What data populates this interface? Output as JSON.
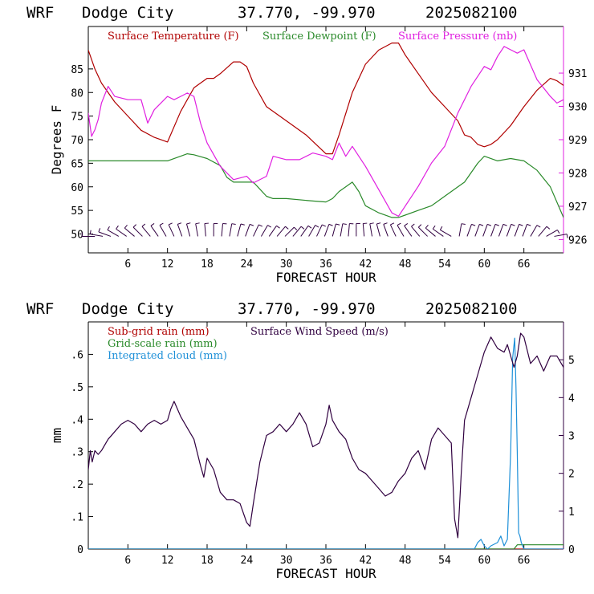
{
  "colors": {
    "temperature": "#b00000",
    "dewpoint": "#2a8a2a",
    "pressure": "#e020e0",
    "subgrid_rain": "#b00000",
    "gridscale_rain": "#2a8a2a",
    "cloud": "#1e90d8",
    "wind": "#300040",
    "axis": "#000000",
    "right_axis_top": "#e020e0",
    "right_axis_bottom": "#300040"
  },
  "chart_data": [
    {
      "type": "line",
      "header": {
        "model": "WRF",
        "location": "Dodge City",
        "coords": "37.770, -99.970",
        "run": "2025082100"
      },
      "xlabel": "FORECAST HOUR",
      "ylabel": "Degrees F",
      "xlim": [
        0,
        72
      ],
      "ylim": [
        46,
        94
      ],
      "y2lim": [
        925.6,
        932.4
      ],
      "x_ticks": [
        "6",
        "12",
        "18",
        "24",
        "30",
        "36",
        "42",
        "48",
        "54",
        "60",
        "66"
      ],
      "x_tick_values": [
        6,
        12,
        18,
        24,
        30,
        36,
        42,
        48,
        54,
        60,
        66
      ],
      "y_ticks": [
        "50",
        "55",
        "60",
        "65",
        "70",
        "75",
        "80",
        "85"
      ],
      "y_tick_values": [
        50,
        55,
        60,
        65,
        70,
        75,
        80,
        85
      ],
      "y2_ticks": [
        "926",
        "927",
        "928",
        "929",
        "930",
        "931"
      ],
      "y2_tick_values": [
        926,
        927,
        928,
        929,
        930,
        931
      ],
      "legend": [
        "Surface Temperature (F)",
        "Surface Dewpoint (F)",
        "Surface Pressure (mb)"
      ],
      "series": [
        {
          "name": "Surface Temperature (F)",
          "axis": "left",
          "x": [
            0,
            1,
            2,
            4,
            6,
            8,
            10,
            12,
            14,
            16,
            18,
            19,
            20,
            22,
            23,
            24,
            25,
            27,
            30,
            33,
            36,
            37,
            38,
            40,
            42,
            44,
            46,
            47,
            48,
            50,
            52,
            54,
            56,
            57,
            58,
            59,
            60,
            61,
            62,
            64,
            66,
            68,
            70,
            71,
            72
          ],
          "y": [
            89,
            85,
            82,
            78,
            75,
            72,
            70.5,
            69.5,
            76,
            81,
            83,
            83,
            84,
            86.5,
            86.5,
            85.5,
            82,
            77,
            74,
            71,
            67,
            67,
            71,
            80,
            86,
            89,
            90.5,
            90.5,
            88,
            84,
            80,
            77,
            74,
            71,
            70.5,
            69,
            68.5,
            69,
            70,
            73,
            77,
            80.5,
            83,
            82.5,
            81.5
          ]
        },
        {
          "name": "Surface Dewpoint (F)",
          "axis": "left",
          "x": [
            0,
            2,
            4,
            8,
            12,
            14,
            15,
            16,
            18,
            20,
            21,
            22,
            24,
            25,
            26,
            27,
            28,
            30,
            34,
            36,
            37,
            38,
            39,
            40,
            41,
            42,
            44,
            46,
            47,
            48,
            50,
            52,
            54,
            56,
            57,
            58,
            59,
            60,
            62,
            64,
            66,
            68,
            70,
            72
          ],
          "y": [
            65.5,
            65.5,
            65.5,
            65.5,
            65.5,
            66.5,
            67,
            66.8,
            66,
            64.5,
            62,
            61,
            61,
            61,
            59.5,
            58,
            57.5,
            57.5,
            57,
            56.8,
            57.5,
            59,
            60,
            61,
            59,
            56,
            54.5,
            53.5,
            53.5,
            54,
            55,
            56,
            58,
            60,
            61,
            63,
            65,
            66.5,
            65.5,
            66,
            65.5,
            63.5,
            60,
            53.5
          ]
        },
        {
          "name": "Surface Pressure (mb)",
          "axis": "right",
          "x": [
            0,
            0.5,
            1,
            1.5,
            2,
            3,
            4,
            6,
            8,
            9,
            10,
            11,
            12,
            13,
            14,
            15,
            16,
            17,
            18,
            20,
            22,
            24,
            25,
            27,
            28,
            30,
            32,
            34,
            36,
            37,
            38,
            39,
            40,
            42,
            44,
            46,
            47,
            48,
            50,
            52,
            54,
            56,
            58,
            60,
            61,
            62,
            63,
            64,
            65,
            66,
            68,
            70,
            71,
            72
          ],
          "y": [
            929.8,
            929.1,
            929.3,
            929.6,
            930.1,
            930.6,
            930.3,
            930.2,
            930.2,
            929.5,
            929.9,
            930.1,
            930.3,
            930.2,
            930.3,
            930.4,
            930.3,
            929.5,
            928.9,
            928.2,
            927.8,
            927.9,
            927.7,
            927.9,
            928.5,
            928.4,
            928.4,
            928.6,
            928.5,
            928.4,
            928.9,
            928.5,
            928.8,
            928.2,
            927.5,
            926.8,
            926.7,
            927.0,
            927.6,
            928.3,
            928.8,
            929.8,
            930.6,
            931.2,
            931.1,
            931.5,
            931.8,
            931.7,
            931.6,
            931.7,
            930.8,
            930.3,
            930.1,
            930.2
          ]
        }
      ],
      "wind_barbs": {
        "x": [
          1,
          2.2,
          3.4,
          4.6,
          5.8,
          7,
          8.2,
          9.4,
          10.6,
          11.8,
          13,
          14.2,
          15.4,
          16.6,
          17.8,
          19,
          20.2,
          21.4,
          22.6,
          23.8,
          25,
          26.2,
          27.4,
          28.6,
          29.8,
          31,
          32.2,
          33.4,
          34.6,
          35.8,
          37,
          38.2,
          39.4,
          40.6,
          41.8,
          43,
          44.2,
          45.4,
          46.6,
          47.8,
          49,
          50.2,
          51.4,
          52.6,
          53.8,
          55,
          56.2,
          57.4,
          58.6,
          59.8,
          61,
          62.2,
          63.4,
          64.6,
          65.8,
          67,
          68.2,
          69.4,
          70.6
        ],
        "dir_deg": [
          -90,
          -80,
          -70,
          -60,
          -55,
          -50,
          -45,
          -40,
          -35,
          -30,
          -25,
          -20,
          -15,
          -10,
          -5,
          0,
          5,
          10,
          15,
          20,
          25,
          30,
          35,
          40,
          45,
          40,
          35,
          30,
          25,
          20,
          15,
          10,
          5,
          0,
          -5,
          -10,
          -15,
          -20,
          -25,
          -30,
          -35,
          -40,
          -45,
          -50,
          -55,
          -60,
          10,
          20,
          20,
          20,
          20,
          20,
          20,
          20,
          20,
          30,
          40,
          60,
          80
        ]
      }
    },
    {
      "type": "line",
      "header": {
        "model": "WRF",
        "location": "Dodge City",
        "coords": "37.770, -99.970",
        "run": "2025082100"
      },
      "xlabel": "FORECAST HOUR",
      "ylabel": "mm",
      "xlim": [
        0,
        72
      ],
      "ylim": [
        0,
        0.7
      ],
      "y2lim": [
        0,
        6
      ],
      "x_ticks": [
        "6",
        "12",
        "18",
        "24",
        "30",
        "36",
        "42",
        "48",
        "54",
        "60",
        "66"
      ],
      "x_tick_values": [
        6,
        12,
        18,
        24,
        30,
        36,
        42,
        48,
        54,
        60,
        66
      ],
      "y_ticks": [
        "0",
        ".1",
        ".2",
        ".3",
        ".4",
        ".5",
        ".6"
      ],
      "y_tick_values": [
        0,
        0.1,
        0.2,
        0.3,
        0.4,
        0.5,
        0.6
      ],
      "y2_ticks": [
        "0",
        "1",
        "2",
        "3",
        "4",
        "5"
      ],
      "y2_tick_values": [
        0,
        1,
        2,
        3,
        4,
        5
      ],
      "legend": [
        "Sub-grid rain (mm)",
        "Surface Wind Speed (m/s)",
        "Grid-scale rain (mm)",
        "Integrated cloud (mm)"
      ],
      "series": [
        {
          "name": "Sub-grid rain (mm)",
          "axis": "left",
          "x": [
            0,
            72
          ],
          "y": [
            0,
            0
          ]
        },
        {
          "name": "Grid-scale rain (mm)",
          "axis": "left",
          "x": [
            0,
            64.5,
            65,
            66,
            72
          ],
          "y": [
            0,
            0,
            0.013,
            0.013,
            0.013
          ]
        },
        {
          "name": "Integrated cloud (mm)",
          "axis": "left",
          "x": [
            0,
            58.5,
            59,
            59.5,
            60,
            60.5,
            61,
            62,
            62.5,
            63,
            63.5,
            64,
            64.3,
            64.6,
            64.8,
            65,
            65.2,
            65.4,
            65.6,
            66,
            72
          ],
          "y": [
            0,
            0,
            0.02,
            0.03,
            0.01,
            0,
            0.01,
            0.02,
            0.04,
            0.01,
            0.03,
            0.3,
            0.59,
            0.65,
            0.5,
            0.3,
            0.05,
            0.04,
            0.02,
            0,
            0
          ]
        },
        {
          "name": "Surface Wind Speed (m/s)",
          "axis": "right",
          "x": [
            0,
            0.3,
            0.6,
            1,
            1.5,
            2,
            3,
            4,
            5,
            6,
            7,
            8,
            9,
            10,
            11,
            12,
            12.5,
            13,
            14,
            15,
            16,
            17,
            17.5,
            18,
            19,
            20,
            21,
            22,
            23,
            24,
            24.5,
            25,
            26,
            27,
            28,
            29,
            30,
            31,
            32,
            33,
            34,
            35,
            36,
            36.5,
            37,
            38,
            39,
            40,
            41,
            42,
            43,
            44,
            45,
            46,
            47,
            48,
            49,
            50,
            51,
            52,
            53,
            54,
            55,
            55.5,
            56,
            56.5,
            57,
            58,
            59,
            60,
            61,
            62,
            63,
            63.5,
            64,
            64.5,
            65,
            65.5,
            66,
            67,
            68,
            69,
            70,
            71,
            72
          ],
          "y": [
            2.1,
            2.6,
            2.3,
            2.6,
            2.5,
            2.6,
            2.9,
            3.1,
            3.3,
            3.4,
            3.3,
            3.1,
            3.3,
            3.4,
            3.3,
            3.4,
            3.7,
            3.9,
            3.5,
            3.2,
            2.9,
            2.2,
            1.9,
            2.4,
            2.1,
            1.5,
            1.3,
            1.3,
            1.2,
            0.7,
            0.6,
            1.2,
            2.3,
            3.0,
            3.1,
            3.3,
            3.1,
            3.3,
            3.6,
            3.3,
            2.7,
            2.8,
            3.3,
            3.8,
            3.4,
            3.1,
            2.9,
            2.4,
            2.1,
            2.0,
            1.8,
            1.6,
            1.4,
            1.5,
            1.8,
            2.0,
            2.4,
            2.6,
            2.1,
            2.9,
            3.2,
            3.0,
            2.8,
            0.8,
            0.3,
            2.0,
            3.4,
            4.0,
            4.6,
            5.2,
            5.6,
            5.3,
            5.2,
            5.4,
            5.1,
            4.8,
            5.1,
            5.7,
            5.6,
            4.9,
            5.1,
            4.7,
            5.1,
            5.1,
            4.8
          ]
        }
      ]
    }
  ]
}
